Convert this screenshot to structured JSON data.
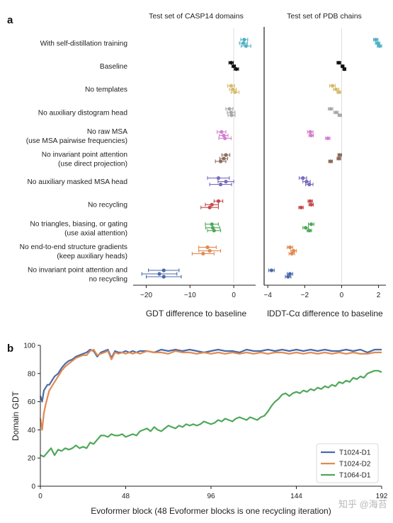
{
  "panel_a": {
    "letter": "a",
    "rows": [
      {
        "label": [
          "With self-distillation training"
        ],
        "color": "#4fb0c6",
        "gdt": [
          2.4,
          2.2,
          2.8
        ],
        "gdt_err": [
          0.8,
          0.9,
          1.1
        ],
        "lddt": [
          1.85,
          1.95,
          2.05
        ],
        "lddt_err": [
          0.12,
          0.12,
          0.12
        ]
      },
      {
        "label": [
          "Baseline"
        ],
        "color": "#111111",
        "gdt": [
          -0.6,
          0.0,
          0.6
        ],
        "gdt_err": [
          0.5,
          0.4,
          0.5
        ],
        "lddt": [
          -0.15,
          0.05,
          0.15
        ],
        "lddt_err": [
          0.1,
          0.08,
          0.08
        ]
      },
      {
        "label": [
          "No templates"
        ],
        "color": "#d6ba6a",
        "gdt": [
          -0.6,
          -0.2,
          0.3
        ],
        "gdt_err": [
          0.8,
          0.8,
          0.9
        ],
        "lddt": [
          -0.5,
          -0.3,
          -0.15
        ],
        "lddt_err": [
          0.15,
          0.15,
          0.1
        ]
      },
      {
        "label": [
          "No auxiliary distogram head"
        ],
        "color": "#a8a8a8",
        "gdt": [
          -1.0,
          -0.6,
          -0.5
        ],
        "gdt_err": [
          0.8,
          0.9,
          0.8
        ],
        "lddt": [
          -0.6,
          -0.3,
          -0.1
        ],
        "lddt_err": [
          0.12,
          0.12,
          0.1
        ]
      },
      {
        "label": [
          "No raw MSA",
          "(use MSA pairwise frequencies)"
        ],
        "color": "#d47fcf",
        "gdt": [
          -2.8,
          -2.3,
          -2.0
        ],
        "gdt_err": [
          1.0,
          1.0,
          1.4
        ],
        "lddt": [
          -1.7,
          -1.65,
          -0.75
        ],
        "lddt_err": [
          0.15,
          0.12,
          0.12
        ]
      },
      {
        "label": [
          "No invariant point attention",
          "(use direct projection)"
        ],
        "color": "#8c6b5b",
        "gdt": [
          -1.8,
          -2.3,
          -3.0
        ],
        "gdt_err": [
          0.9,
          0.9,
          1.2
        ],
        "lddt": [
          -0.1,
          -0.15,
          -0.6
        ],
        "lddt_err": [
          0.1,
          0.1,
          0.1
        ]
      },
      {
        "label": [
          "No auxiliary masked MSA head"
        ],
        "color": "#7a6bbd",
        "gdt": [
          -3.5,
          -1.8,
          -3.0
        ],
        "gdt_err": [
          2.5,
          1.8,
          2.5
        ],
        "lddt": [
          -2.1,
          -1.9,
          -1.75
        ],
        "lddt_err": [
          0.2,
          0.2,
          0.2
        ]
      },
      {
        "label": [
          "No recycling"
        ],
        "color": "#c44a4a",
        "gdt": [
          -3.5,
          -5.0,
          -5.5
        ],
        "gdt_err": [
          1.0,
          1.5,
          2.0
        ],
        "lddt": [
          -1.7,
          -1.65,
          -2.2
        ],
        "lddt_err": [
          0.12,
          0.12,
          0.12
        ]
      },
      {
        "label": [
          "No triangles, biasing, or gating",
          "(use axial attention)"
        ],
        "color": "#4fa85a",
        "gdt": [
          -5.0,
          -4.8,
          -4.5
        ],
        "gdt_err": [
          1.5,
          1.6,
          1.5
        ],
        "lddt": [
          -1.65,
          -1.95,
          -1.75
        ],
        "lddt_err": [
          0.15,
          0.15,
          0.12
        ]
      },
      {
        "label": [
          "No end-to-end structure gradients",
          "(keep auxiliary heads)"
        ],
        "color": "#e08a52",
        "gdt": [
          -6.0,
          -5.5,
          -7.0
        ],
        "gdt_err": [
          2.0,
          2.5,
          2.5
        ],
        "lddt": [
          -2.8,
          -2.6,
          -2.7
        ],
        "lddt_err": [
          0.15,
          0.15,
          0.15
        ]
      },
      {
        "label": [
          "No invariant point attention and",
          "no recycling"
        ],
        "color": "#4a6aa8",
        "gdt": [
          -16.0,
          -17.0,
          -16.0
        ],
        "gdt_err": [
          3.5,
          4.0,
          4.0
        ],
        "lddt": [
          -3.8,
          -2.8,
          -2.9
        ],
        "lddt_err": [
          0.15,
          0.15,
          0.15
        ]
      }
    ],
    "gdt_panel": {
      "title": "Test set of CASP14 domains",
      "xlabel": "GDT difference to baseline",
      "xlim": [
        -23,
        5
      ],
      "ticks": [
        -20,
        -10,
        0
      ],
      "tick_labels": [
        "−20",
        "−10",
        "0"
      ]
    },
    "lddt_panel": {
      "title": "Test set of PDB chains",
      "xlabel": "lDDT-Cα difference to baseline",
      "xlim": [
        -4.2,
        2.4
      ],
      "ticks": [
        -4,
        -2,
        0,
        2
      ],
      "tick_labels": [
        "−4",
        "−2",
        "0",
        "2"
      ]
    }
  },
  "chart_data": {
    "type": "line",
    "letter": "b",
    "xlabel": "Evoformer block (48 Evoformer blocks is one recycling iteration)",
    "ylabel": "Domain GDT",
    "xlim": [
      0,
      192
    ],
    "ylim": [
      0,
      100
    ],
    "xticks": [
      0,
      48,
      96,
      144,
      192
    ],
    "yticks": [
      0,
      20,
      40,
      60,
      80,
      100
    ],
    "legend_position": "bottom-right",
    "series": [
      {
        "name": "T1024-D1",
        "color": "#4a6aa8",
        "x": [
          0,
          1,
          2,
          3,
          4,
          5,
          6,
          8,
          10,
          12,
          14,
          16,
          18,
          20,
          22,
          24,
          26,
          28,
          30,
          32,
          34,
          36,
          38,
          40,
          42,
          44,
          46,
          48,
          50,
          52,
          54,
          56,
          60,
          64,
          68,
          72,
          76,
          80,
          84,
          88,
          92,
          96,
          100,
          104,
          108,
          112,
          116,
          120,
          124,
          128,
          132,
          136,
          140,
          144,
          148,
          152,
          156,
          160,
          164,
          168,
          172,
          176,
          180,
          184,
          188,
          192
        ],
        "y": [
          64,
          60,
          68,
          70,
          72,
          72,
          74,
          78,
          80,
          84,
          87,
          89,
          90,
          92,
          93,
          94,
          95,
          97,
          96,
          92,
          95,
          96,
          97,
          91,
          96,
          95,
          95,
          96,
          95,
          96,
          95,
          96,
          96,
          95,
          97,
          96,
          97,
          96,
          97,
          96,
          95,
          96,
          97,
          96,
          96,
          95,
          97,
          96,
          96,
          97,
          96,
          97,
          96,
          97,
          96,
          97,
          96,
          97,
          96,
          96,
          97,
          96,
          97,
          95,
          97,
          97
        ]
      },
      {
        "name": "T1024-D2",
        "color": "#e08a52",
        "x": [
          0,
          1,
          2,
          3,
          4,
          5,
          6,
          8,
          10,
          12,
          14,
          16,
          18,
          20,
          22,
          24,
          26,
          28,
          30,
          32,
          34,
          36,
          38,
          40,
          42,
          44,
          46,
          48,
          50,
          52,
          54,
          56,
          60,
          64,
          68,
          72,
          76,
          80,
          84,
          88,
          92,
          96,
          100,
          104,
          108,
          112,
          116,
          120,
          124,
          128,
          132,
          136,
          140,
          144,
          148,
          152,
          156,
          160,
          164,
          168,
          172,
          176,
          180,
          184,
          188,
          192
        ],
        "y": [
          48,
          40,
          52,
          58,
          63,
          68,
          70,
          74,
          78,
          82,
          85,
          87,
          89,
          91,
          92,
          93,
          93,
          96,
          97,
          93,
          94,
          95,
          96,
          90,
          95,
          94,
          95,
          94,
          95,
          94,
          95,
          94,
          96,
          95,
          95,
          94,
          96,
          95,
          95,
          94,
          95,
          94,
          95,
          94,
          95,
          94,
          95,
          94,
          95,
          94,
          95,
          95,
          94,
          95,
          94,
          95,
          94,
          95,
          94,
          95,
          94,
          95,
          94,
          94,
          95,
          95
        ]
      },
      {
        "name": "T1064-D1",
        "color": "#4fa85a",
        "x": [
          0,
          2,
          4,
          6,
          8,
          10,
          12,
          14,
          16,
          18,
          20,
          22,
          24,
          26,
          28,
          30,
          32,
          34,
          36,
          38,
          40,
          42,
          44,
          46,
          48,
          50,
          52,
          54,
          56,
          58,
          60,
          62,
          64,
          66,
          68,
          70,
          72,
          74,
          76,
          78,
          80,
          82,
          84,
          86,
          88,
          90,
          92,
          94,
          96,
          98,
          100,
          102,
          104,
          106,
          108,
          110,
          112,
          114,
          116,
          118,
          120,
          122,
          124,
          126,
          128,
          130,
          132,
          134,
          136,
          138,
          140,
          142,
          144,
          146,
          148,
          150,
          152,
          154,
          156,
          158,
          160,
          162,
          164,
          166,
          168,
          170,
          172,
          174,
          176,
          178,
          180,
          182,
          184,
          186,
          188,
          190,
          192
        ],
        "y": [
          22,
          21,
          24,
          27,
          22,
          26,
          25,
          27,
          26,
          27,
          29,
          27,
          28,
          27,
          31,
          30,
          33,
          36,
          36,
          35,
          37,
          36,
          36,
          37,
          35,
          36,
          37,
          36,
          39,
          40,
          41,
          39,
          42,
          40,
          39,
          41,
          43,
          42,
          41,
          43,
          42,
          44,
          43,
          44,
          43,
          44,
          46,
          45,
          44,
          45,
          47,
          46,
          48,
          47,
          46,
          48,
          49,
          48,
          47,
          49,
          48,
          47,
          49,
          50,
          53,
          57,
          60,
          62,
          65,
          66,
          64,
          66,
          67,
          66,
          68,
          67,
          69,
          68,
          70,
          69,
          71,
          70,
          72,
          71,
          74,
          73,
          75,
          74,
          77,
          76,
          78,
          77,
          80,
          81,
          82,
          82,
          81
        ]
      }
    ]
  },
  "watermark": "知乎 @海苔"
}
